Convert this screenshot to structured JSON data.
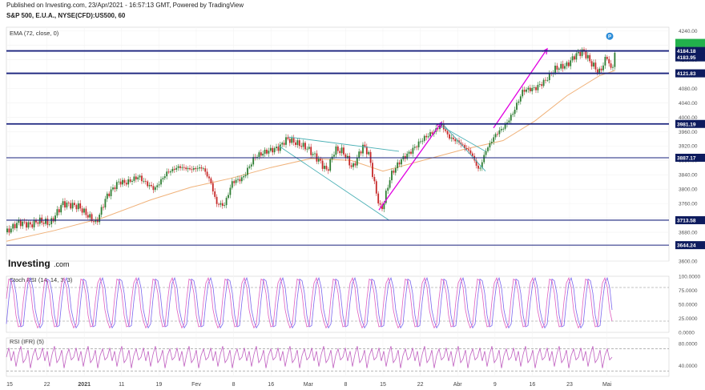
{
  "header": {
    "published": "Published on Investing.com, 23/Apr/2021 - 16:57:13 GMT, Powered by TradingView",
    "symbol": "S&P 500, E.U.A., NYSE(CFD):US500, 60"
  },
  "watermark": {
    "brand": "Investing",
    "suffix": ".com"
  },
  "colors": {
    "up": "#2e7d32",
    "down": "#c62828",
    "ema": "#f0b27a",
    "hline": "#1a237e",
    "trend": "#4ab0b5",
    "arrow": "#e100e1",
    "stoch_k": "#7b68ee",
    "stoch_d": "#e060c0",
    "rsi": "#c060c0",
    "last_price": "#22b14c"
  },
  "chart_data": [
    {
      "type": "candlestick",
      "panel": "price",
      "indicator_label": "EMA (72, close, 0)",
      "ylim": [
        3600,
        4250
      ],
      "y_ticks": [
        "4240.00",
        "4200.00",
        "4160.00",
        "4120.00",
        "4080.00",
        "4040.00",
        "4000.00",
        "3960.00",
        "3920.00",
        "3880.00",
        "3840.00",
        "3800.00",
        "3760.00",
        "3720.00",
        "3680.00",
        "3640.00",
        "3600.00"
      ],
      "x_ticks": [
        "15",
        "22",
        "2021",
        "11",
        "19",
        "Fev",
        "8",
        "16",
        "Mar",
        "8",
        "15",
        "22",
        "Abr",
        "9",
        "16",
        "23",
        "Mai"
      ],
      "horizontal_levels": [
        {
          "value": 4184.18,
          "label": "4184.18",
          "weight": "heavy"
        },
        {
          "value": 4121.83,
          "label": "4121.83",
          "weight": "heavy"
        },
        {
          "value": 3981.19,
          "label": "3981.19",
          "weight": "heavy"
        },
        {
          "value": 3887.17,
          "label": "3887.17",
          "weight": "normal"
        },
        {
          "value": 3713.58,
          "label": "3713.58",
          "weight": "normal"
        },
        {
          "value": 3644.24,
          "label": "3644.24",
          "weight": "normal"
        }
      ],
      "last_price": {
        "value": 4183.95,
        "label": "4183.95"
      },
      "series_path": [
        [
          0,
          3680
        ],
        [
          15,
          3708
        ],
        [
          30,
          3700
        ],
        [
          40,
          3712
        ],
        [
          55,
          3705
        ],
        [
          70,
          3760
        ],
        [
          90,
          3752
        ],
        [
          100,
          3730
        ],
        [
          112,
          3705
        ],
        [
          125,
          3780
        ],
        [
          140,
          3820
        ],
        [
          150,
          3818
        ],
        [
          165,
          3835
        ],
        [
          175,
          3815
        ],
        [
          185,
          3800
        ],
        [
          200,
          3845
        ],
        [
          215,
          3862
        ],
        [
          230,
          3855
        ],
        [
          245,
          3860
        ],
        [
          255,
          3820
        ],
        [
          262,
          3760
        ],
        [
          272,
          3755
        ],
        [
          282,
          3820
        ],
        [
          295,
          3830
        ],
        [
          310,
          3890
        ],
        [
          325,
          3905
        ],
        [
          340,
          3915
        ],
        [
          350,
          3940
        ],
        [
          360,
          3930
        ],
        [
          375,
          3915
        ],
        [
          390,
          3880
        ],
        [
          400,
          3850
        ],
        [
          410,
          3910
        ],
        [
          420,
          3905
        ],
        [
          432,
          3858
        ],
        [
          445,
          3920
        ],
        [
          452,
          3900
        ],
        [
          462,
          3785
        ],
        [
          468,
          3738
        ],
        [
          480,
          3840
        ],
        [
          492,
          3880
        ],
        [
          505,
          3905
        ],
        [
          520,
          3940
        ],
        [
          535,
          3962
        ],
        [
          543,
          3981
        ],
        [
          552,
          3945
        ],
        [
          565,
          3930
        ],
        [
          580,
          3900
        ],
        [
          590,
          3850
        ],
        [
          598,
          3905
        ],
        [
          610,
          3950
        ],
        [
          622,
          3975
        ],
        [
          632,
          4010
        ],
        [
          645,
          4075
        ],
        [
          660,
          4080
        ],
        [
          672,
          4100
        ],
        [
          685,
          4135
        ],
        [
          700,
          4145
        ],
        [
          710,
          4172
        ],
        [
          720,
          4184
        ],
        [
          730,
          4150
        ],
        [
          740,
          4124
        ],
        [
          750,
          4170
        ],
        [
          755,
          4125
        ],
        [
          760,
          4184
        ]
      ],
      "ema_path": [
        [
          0,
          3655
        ],
        [
          60,
          3685
        ],
        [
          120,
          3720
        ],
        [
          180,
          3770
        ],
        [
          230,
          3805
        ],
        [
          280,
          3830
        ],
        [
          330,
          3860
        ],
        [
          380,
          3885
        ],
        [
          430,
          3880
        ],
        [
          470,
          3850
        ],
        [
          520,
          3880
        ],
        [
          570,
          3910
        ],
        [
          620,
          3935
        ],
        [
          660,
          3990
        ],
        [
          700,
          4060
        ],
        [
          740,
          4115
        ],
        [
          760,
          4130
        ]
      ],
      "trendlines": [
        {
          "from": [
            352,
            3945
          ],
          "to": [
            490,
            3905
          ]
        },
        {
          "from": [
            340,
            3920
          ],
          "to": [
            478,
            3713
          ]
        },
        {
          "from": [
            543,
            3985
          ],
          "to": [
            598,
            3850
          ]
        },
        {
          "from": [
            543,
            3975
          ],
          "to": [
            598,
            3905
          ]
        }
      ],
      "arrows": [
        {
          "from": [
            465,
            3742
          ],
          "to": [
            543,
            3985
          ]
        },
        {
          "from": [
            608,
            3970
          ],
          "to": [
            675,
            4190
          ]
        }
      ],
      "marker": {
        "label": "P",
        "x": 753,
        "y": 4225
      }
    },
    {
      "type": "line",
      "panel": "stoch",
      "label": "Stoch RSI (14, 14, 3, 3)",
      "ylim": [
        0,
        100
      ],
      "y_ticks": [
        "100.0000",
        "75.0000",
        "50.0000",
        "25.0000",
        "0.0000"
      ],
      "guides": [
        80,
        20
      ],
      "cycle": [
        15,
        60,
        95,
        92,
        70,
        30,
        10,
        12,
        55,
        88,
        97,
        80,
        40,
        20,
        8
      ],
      "cycle_step": 3
    },
    {
      "type": "line",
      "panel": "rsi",
      "label": "RSI (IFR) (5)",
      "ylim": [
        20,
        90
      ],
      "y_ticks": [
        "80.0000",
        "40.0000"
      ],
      "guides": [
        70,
        30
      ],
      "cycle": [
        55,
        72,
        48,
        66,
        38,
        60,
        75,
        45,
        52,
        68,
        35,
        58,
        70,
        50
      ],
      "cycle_step": 3
    }
  ]
}
